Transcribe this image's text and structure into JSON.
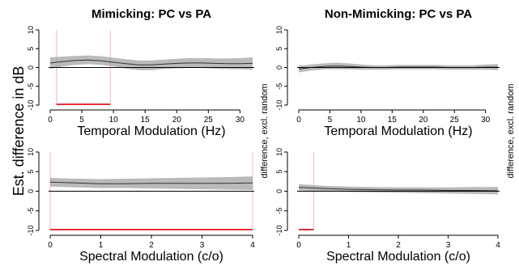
{
  "figure": {
    "left_axis_label": "Est. difference in dB",
    "right_axis_label_a": "difference, excl. random",
    "right_axis_label_b": "difference, excl. random"
  },
  "chart_data": [
    {
      "type": "line",
      "title": "Mimicking: PC vs PA",
      "xlabel": "Temporal Modulation (Hz)",
      "ylabel": "",
      "xlim": [
        0,
        32
      ],
      "ylim": [
        -10,
        10
      ],
      "xticks": [
        0,
        5,
        10,
        15,
        20,
        25,
        30
      ],
      "yticks": [
        -10,
        -5,
        0,
        5,
        10
      ],
      "x": [
        0,
        2,
        4,
        6,
        8,
        10,
        12,
        14,
        16,
        18,
        20,
        22,
        24,
        26,
        28,
        30,
        32
      ],
      "series": [
        {
          "values": [
            1.2,
            1.6,
            1.9,
            2.0,
            1.8,
            1.4,
            1.0,
            0.7,
            0.7,
            0.9,
            1.1,
            1.2,
            1.2,
            1.1,
            1.0,
            1.0,
            1.1
          ],
          "lower": [
            -0.3,
            0.3,
            0.7,
            0.9,
            0.7,
            0.3,
            -0.3,
            -0.7,
            -0.7,
            -0.4,
            -0.2,
            -0.1,
            -0.1,
            -0.3,
            -0.4,
            -0.5,
            -0.6
          ],
          "upper": [
            2.7,
            2.9,
            3.1,
            3.2,
            3.0,
            2.6,
            2.2,
            1.9,
            1.9,
            2.1,
            2.3,
            2.5,
            2.5,
            2.4,
            2.4,
            2.5,
            2.7
          ]
        }
      ],
      "significant_range": [
        1,
        9.5
      ],
      "vlines": [
        1,
        9.5
      ],
      "hline": 0
    },
    {
      "type": "line",
      "title": "Non-Mimicking: PC vs PA",
      "xlabel": "Temporal Modulation (Hz)",
      "ylabel": "",
      "xlim": [
        0,
        32
      ],
      "ylim": [
        -10,
        10
      ],
      "xticks": [
        0,
        5,
        10,
        15,
        20,
        25,
        30
      ],
      "yticks": [
        -10,
        -5,
        0,
        5,
        10
      ],
      "x": [
        0,
        2,
        4,
        6,
        8,
        10,
        12,
        14,
        16,
        18,
        20,
        22,
        24,
        26,
        28,
        30,
        32
      ],
      "series": [
        {
          "values": [
            -0.4,
            0.0,
            0.3,
            0.4,
            0.3,
            0.1,
            0.0,
            0.0,
            0.1,
            0.1,
            0.1,
            0.1,
            0.0,
            0.0,
            0.0,
            0.1,
            0.1
          ],
          "lower": [
            -1.3,
            -0.8,
            -0.5,
            -0.5,
            -0.5,
            -0.6,
            -0.6,
            -0.6,
            -0.5,
            -0.5,
            -0.5,
            -0.5,
            -0.6,
            -0.6,
            -0.6,
            -0.6,
            -0.7
          ],
          "upper": [
            0.5,
            0.8,
            1.1,
            1.3,
            1.1,
            0.8,
            0.6,
            0.6,
            0.7,
            0.7,
            0.7,
            0.7,
            0.6,
            0.6,
            0.6,
            0.8,
            0.9
          ]
        }
      ],
      "hline": 0
    },
    {
      "type": "line",
      "title": "",
      "xlabel": "Spectral Modulation (c/o)",
      "ylabel": "",
      "xlim": [
        0,
        4
      ],
      "ylim": [
        -10,
        10
      ],
      "xticks": [
        0,
        1,
        2,
        3,
        4
      ],
      "yticks": [
        -10,
        -5,
        0,
        5,
        10
      ],
      "x": [
        0,
        0.5,
        1,
        1.5,
        2,
        2.5,
        3,
        3.5,
        4
      ],
      "series": [
        {
          "values": [
            2.3,
            2.1,
            1.9,
            1.9,
            2.0,
            2.0,
            2.0,
            2.0,
            2.1
          ],
          "lower": [
            1.2,
            1.0,
            0.8,
            0.8,
            0.7,
            0.6,
            0.5,
            0.4,
            0.3
          ],
          "upper": [
            3.4,
            3.2,
            3.1,
            3.2,
            3.3,
            3.4,
            3.5,
            3.6,
            3.8
          ]
        }
      ],
      "significant_range": [
        0,
        4
      ],
      "vlines": [
        0,
        4
      ],
      "hline": 0
    },
    {
      "type": "line",
      "title": "",
      "xlabel": "Spectral Modulation (c/o)",
      "ylabel": "",
      "xlim": [
        0,
        4
      ],
      "ylim": [
        -10,
        10
      ],
      "xticks": [
        0,
        1,
        2,
        3,
        4
      ],
      "yticks": [
        -10,
        -5,
        0,
        5,
        10
      ],
      "x": [
        0,
        0.5,
        1,
        1.5,
        2,
        2.5,
        3,
        3.5,
        4
      ],
      "series": [
        {
          "values": [
            1.0,
            0.7,
            0.5,
            0.4,
            0.3,
            0.3,
            0.2,
            0.2,
            0.1
          ],
          "lower": [
            0.2,
            0.0,
            -0.2,
            -0.3,
            -0.4,
            -0.5,
            -0.6,
            -0.7,
            -0.8
          ],
          "upper": [
            1.8,
            1.4,
            1.2,
            1.1,
            1.0,
            1.0,
            1.0,
            1.1,
            1.1
          ]
        }
      ],
      "significant_range": [
        0,
        0.3
      ],
      "vlines": [
        0.3
      ],
      "hline": 0
    }
  ]
}
